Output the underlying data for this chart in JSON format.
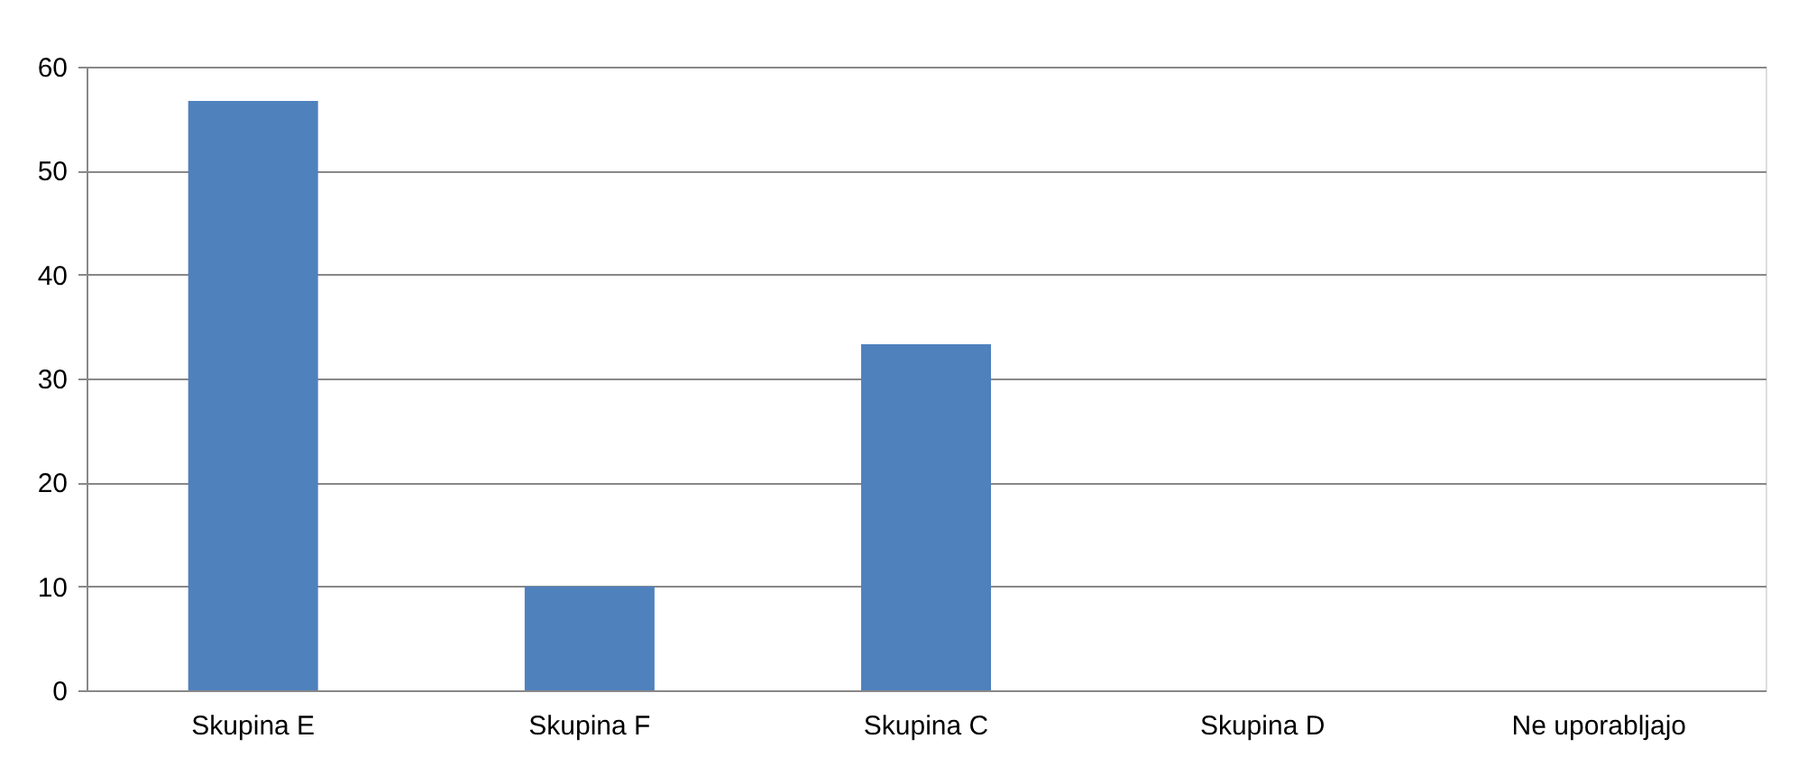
{
  "chart_data": {
    "type": "bar",
    "categories": [
      "Skupina E",
      "Skupina F",
      "Skupina C",
      "Skupina D",
      "Ne uporabljajo"
    ],
    "values": [
      56.7,
      10,
      33.3,
      0,
      0
    ],
    "color": "#4f81bd",
    "ylim": [
      0,
      60
    ],
    "yticks": [
      0,
      10,
      20,
      30,
      40,
      50,
      60
    ],
    "grid": "y"
  }
}
